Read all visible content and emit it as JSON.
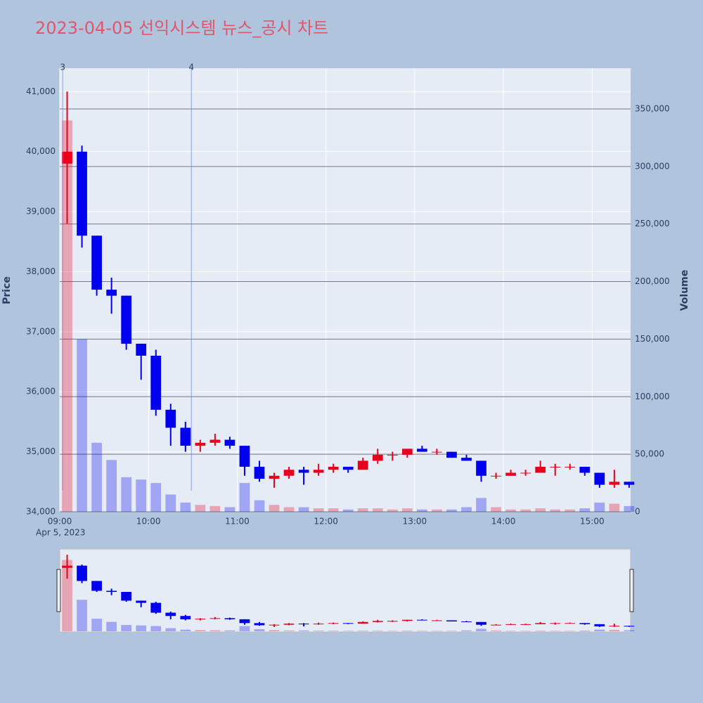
{
  "chart_data": {
    "type": "candlestick",
    "title": "2023-04-05 선익시스템 뉴스_공시 차트",
    "ylabel": "Price",
    "y2label": "Volume",
    "x_date_label": "Apr 5, 2023",
    "x": [
      "2023-04-05 09:00",
      "2023-04-05 09:10",
      "2023-04-05 09:20",
      "2023-04-05 09:30",
      "2023-04-05 09:40",
      "2023-04-05 09:50",
      "2023-04-05 10:00",
      "2023-04-05 10:10",
      "2023-04-05 10:20",
      "2023-04-05 10:30",
      "2023-04-05 10:40",
      "2023-04-05 10:50",
      "2023-04-05 11:00",
      "2023-04-05 11:10",
      "2023-04-05 11:20",
      "2023-04-05 11:30",
      "2023-04-05 11:40",
      "2023-04-05 11:50",
      "2023-04-05 12:00",
      "2023-04-05 12:10",
      "2023-04-05 12:20",
      "2023-04-05 12:30",
      "2023-04-05 12:40",
      "2023-04-05 12:50",
      "2023-04-05 13:00",
      "2023-04-05 13:10",
      "2023-04-05 13:20",
      "2023-04-05 13:30",
      "2023-04-05 13:40",
      "2023-04-05 13:50",
      "2023-04-05 14:00",
      "2023-04-05 14:10",
      "2023-04-05 14:20",
      "2023-04-05 14:30",
      "2023-04-05 14:40",
      "2023-04-05 14:50",
      "2023-04-05 15:00",
      "2023-04-05 15:10",
      "2023-04-05 15:20"
    ],
    "open": [
      39800,
      40000,
      38600,
      37700,
      37600,
      36800,
      36600,
      35700,
      35400,
      35100,
      35150,
      35200,
      35100,
      34750,
      34550,
      34600,
      34700,
      34650,
      34700,
      34750,
      34700,
      34850,
      34950,
      34950,
      35050,
      35000,
      35000,
      34900,
      34850,
      34600,
      34600,
      34650,
      34650,
      34750,
      34750,
      34750,
      34650,
      34450,
      34500
    ],
    "high": [
      41000,
      40100,
      38600,
      37900,
      37600,
      36800,
      36700,
      35800,
      35500,
      35200,
      35300,
      35250,
      35100,
      34850,
      34650,
      34750,
      34750,
      34800,
      34800,
      34750,
      34900,
      35050,
      35000,
      35050,
      35100,
      35050,
      35000,
      34950,
      34850,
      34650,
      34700,
      34700,
      34850,
      34800,
      34800,
      34750,
      34650,
      34700,
      34500
    ],
    "low": [
      38800,
      38400,
      37600,
      37300,
      36700,
      36200,
      35600,
      35100,
      35000,
      35000,
      35100,
      35050,
      34600,
      34500,
      34400,
      34550,
      34450,
      34600,
      34650,
      34650,
      34700,
      34800,
      34850,
      34900,
      35000,
      34950,
      34900,
      34850,
      34500,
      34550,
      34600,
      34600,
      34650,
      34600,
      34700,
      34600,
      34400,
      34400,
      34400
    ],
    "close": [
      40000,
      38600,
      37700,
      37600,
      36800,
      36600,
      35700,
      35400,
      35100,
      35150,
      35200,
      35100,
      34750,
      34550,
      34600,
      34700,
      34650,
      34700,
      34750,
      34700,
      34850,
      34950,
      34950,
      35050,
      35000,
      35000,
      34900,
      34850,
      34600,
      34600,
      34650,
      34650,
      34750,
      34750,
      34750,
      34650,
      34450,
      34500,
      34450
    ],
    "volume": [
      340000,
      150000,
      60000,
      45000,
      30000,
      28000,
      25000,
      15000,
      8000,
      6000,
      5000,
      4000,
      25000,
      10000,
      6000,
      4000,
      4000,
      3000,
      3000,
      2000,
      3000,
      3000,
      2000,
      3000,
      2000,
      2000,
      2000,
      4000,
      12000,
      4000,
      2000,
      2000,
      3000,
      2000,
      2000,
      3000,
      8000,
      7000,
      5000
    ],
    "increasing_color": "#e8001c",
    "decreasing_color": "#0000ee",
    "xlim": [
      "2023-04-05 09:00",
      "2023-04-05 15:26"
    ],
    "xticks": [
      {
        "value": "2023-04-05 09:00",
        "label": "09:00"
      },
      {
        "value": "2023-04-05 10:00",
        "label": "10:00"
      },
      {
        "value": "2023-04-05 11:00",
        "label": "11:00"
      },
      {
        "value": "2023-04-05 12:00",
        "label": "12:00"
      },
      {
        "value": "2023-04-05 13:00",
        "label": "13:00"
      },
      {
        "value": "2023-04-05 14:00",
        "label": "14:00"
      },
      {
        "value": "2023-04-05 15:00",
        "label": "15:00"
      }
    ],
    "ylim": [
      34000,
      41390
    ],
    "yticks": [
      {
        "value": 34000,
        "label": "34,000"
      },
      {
        "value": 35000,
        "label": "35,000"
      },
      {
        "value": 36000,
        "label": "36,000"
      },
      {
        "value": 37000,
        "label": "37,000"
      },
      {
        "value": 38000,
        "label": "38,000"
      },
      {
        "value": 39000,
        "label": "39,000"
      },
      {
        "value": 40000,
        "label": "40,000"
      },
      {
        "value": 41000,
        "label": "41,000"
      }
    ],
    "y2lim": [
      0,
      385400
    ],
    "y2ticks": [
      0,
      {
        "value": 50000,
        "label": "50,000"
      },
      {
        "value": 100000,
        "label": "100,000"
      },
      {
        "value": 150000,
        "label": "150,000"
      },
      {
        "value": 200000,
        "label": "200,000"
      },
      {
        "value": 250000,
        "label": "250,000"
      },
      {
        "value": 300000,
        "label": "300,000"
      },
      {
        "value": 350000,
        "label": "350,000"
      }
    ],
    "annotations": [
      {
        "x": "2023-04-05 09:02",
        "text": "3"
      },
      {
        "x": "2023-04-05 10:29",
        "text": "4"
      }
    ],
    "rangeslider": true
  }
}
